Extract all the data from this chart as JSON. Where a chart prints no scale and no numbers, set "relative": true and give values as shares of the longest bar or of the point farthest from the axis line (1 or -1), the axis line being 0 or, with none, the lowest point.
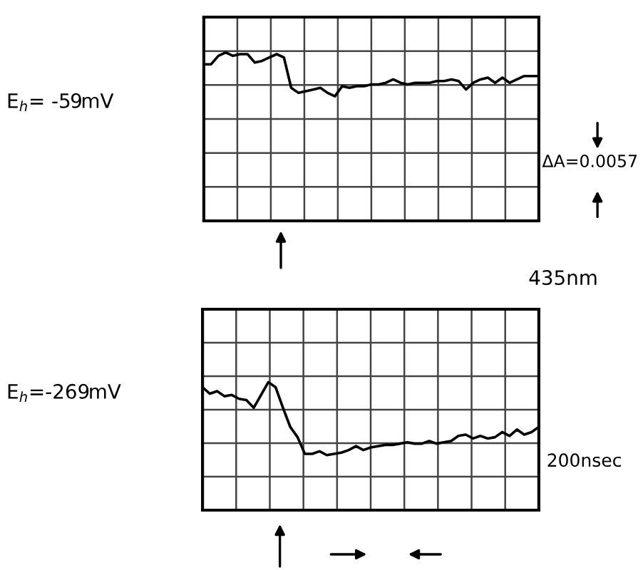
{
  "chart_data": [
    {
      "type": "line",
      "relative": true,
      "grid": true,
      "color": "#000000",
      "categories": [
        null,
        null,
        null,
        null,
        null,
        null,
        null,
        null,
        null,
        null,
        null,
        null,
        null,
        null,
        null,
        null,
        null,
        null,
        null,
        null,
        null,
        null,
        null,
        null,
        null,
        null,
        null,
        null,
        null,
        null,
        null,
        null,
        null,
        null,
        null,
        null,
        null,
        null,
        null,
        null,
        null,
        null,
        null,
        null,
        null,
        null,
        null
      ],
      "values": [
        0.93,
        0.93,
        0.98,
        1.0,
        0.98,
        0.99,
        0.99,
        0.94,
        0.95,
        0.97,
        0.99,
        0.97,
        0.79,
        0.76,
        0.77,
        0.78,
        0.79,
        0.76,
        0.74,
        0.8,
        0.79,
        0.8,
        0.8,
        0.81,
        0.81,
        0.82,
        0.84,
        0.82,
        0.81,
        0.82,
        0.82,
        0.82,
        0.83,
        0.83,
        0.84,
        0.83,
        0.78,
        0.82,
        0.84,
        0.85,
        0.82,
        0.85,
        0.82,
        0.84,
        0.86,
        0.86,
        0.86
      ],
      "annotations": [
        "E$_{h}$= -59mV",
        "ΔA=0.0057",
        "435nm"
      ]
    },
    {
      "type": "line",
      "relative": true,
      "grid": true,
      "color": "#000000",
      "categories": [
        null,
        null,
        null,
        null,
        null,
        null,
        null,
        null,
        null,
        null,
        null,
        null,
        null,
        null,
        null,
        null,
        null,
        null,
        null,
        null,
        null,
        null,
        null,
        null,
        null,
        null,
        null,
        null,
        null,
        null,
        null,
        null,
        null,
        null,
        null,
        null,
        null,
        null,
        null,
        null,
        null,
        null,
        null,
        null,
        null,
        null,
        null
      ],
      "values": [
        0.96,
        0.91,
        0.93,
        0.89,
        0.9,
        0.87,
        0.86,
        0.8,
        0.9,
        1.0,
        0.96,
        0.8,
        0.65,
        0.57,
        0.44,
        0.44,
        0.46,
        0.43,
        0.44,
        0.45,
        0.47,
        0.5,
        0.47,
        0.49,
        0.5,
        0.51,
        0.51,
        0.52,
        0.53,
        0.52,
        0.52,
        0.54,
        0.52,
        0.53,
        0.54,
        0.58,
        0.59,
        0.56,
        0.58,
        0.56,
        0.57,
        0.61,
        0.58,
        0.63,
        0.59,
        0.61,
        0.65
      ],
      "annotations": [
        "E$_{h}$=-269mV",
        "200nsec"
      ]
    }
  ]
}
